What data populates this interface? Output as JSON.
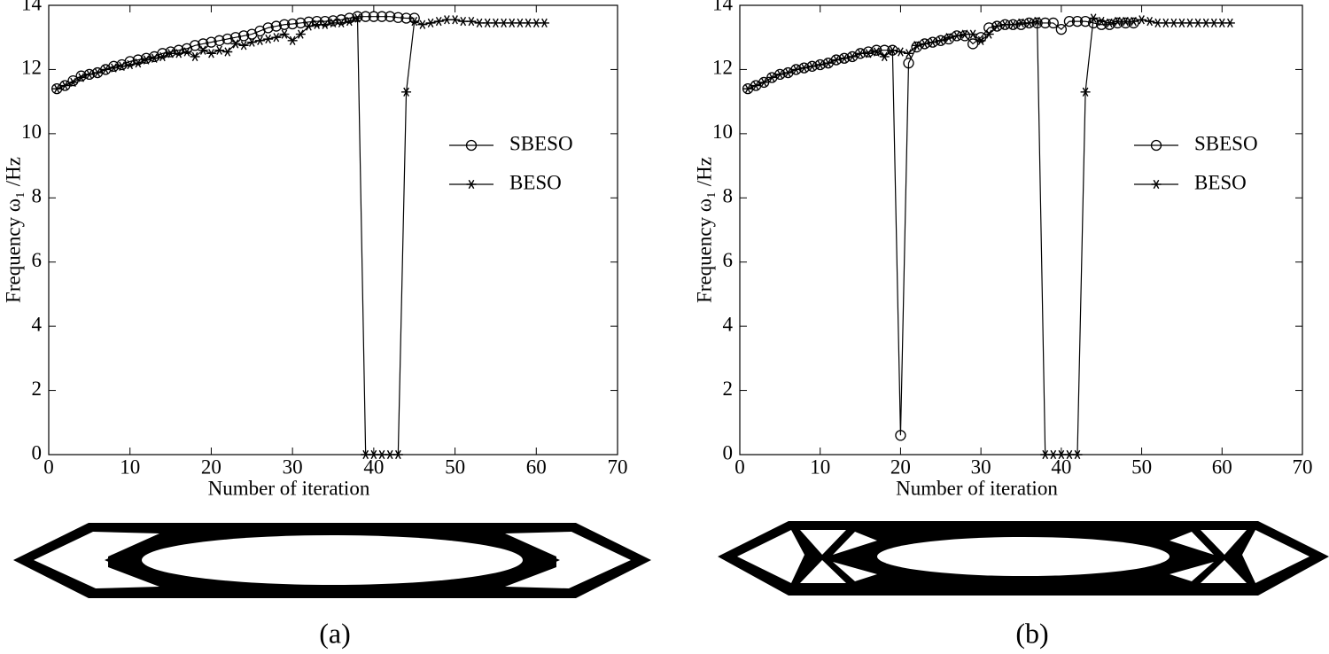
{
  "chart_data": [
    {
      "type": "line",
      "label": "(a)",
      "xlabel": "Number of iteration",
      "ylabel": "Frequency ω₁ /Hz",
      "xlim": [
        0,
        70
      ],
      "ylim": [
        0,
        14
      ],
      "xticks": [
        0,
        10,
        20,
        30,
        40,
        50,
        60,
        70
      ],
      "yticks": [
        0,
        2,
        4,
        6,
        8,
        10,
        12,
        14
      ],
      "legend": "center right",
      "series": [
        {
          "name": "SBESO",
          "color": "#000000",
          "marker": "o",
          "x": [
            1,
            2,
            3,
            4,
            5,
            6,
            7,
            8,
            9,
            10,
            11,
            12,
            13,
            14,
            15,
            16,
            17,
            18,
            19,
            20,
            21,
            22,
            23,
            24,
            25,
            26,
            27,
            28,
            29,
            30,
            31,
            32,
            33,
            34,
            35,
            36,
            37,
            38,
            39,
            40,
            41,
            42,
            43,
            44,
            45
          ],
          "values": [
            11.4,
            11.5,
            11.65,
            11.8,
            11.85,
            11.9,
            12.0,
            12.1,
            12.15,
            12.25,
            12.3,
            12.35,
            12.4,
            12.5,
            12.55,
            12.6,
            12.65,
            12.75,
            12.8,
            12.85,
            12.9,
            12.95,
            13.0,
            13.05,
            13.1,
            13.2,
            13.3,
            13.35,
            13.4,
            13.42,
            13.45,
            13.48,
            13.5,
            13.5,
            13.52,
            13.55,
            13.6,
            13.65,
            13.65,
            13.65,
            13.65,
            13.65,
            13.62,
            13.6,
            13.6
          ]
        },
        {
          "name": "BESO",
          "color": "#000000",
          "marker": "*",
          "x": [
            1,
            2,
            3,
            4,
            5,
            6,
            7,
            8,
            9,
            10,
            11,
            12,
            13,
            14,
            15,
            16,
            17,
            18,
            19,
            20,
            21,
            22,
            23,
            24,
            25,
            26,
            27,
            28,
            29,
            30,
            31,
            32,
            33,
            34,
            35,
            36,
            37,
            38,
            39,
            40,
            41,
            42,
            43,
            44,
            45,
            46,
            47,
            48,
            49,
            50,
            51,
            52,
            53,
            54,
            55,
            56,
            57,
            58,
            59,
            60,
            61
          ],
          "values": [
            11.4,
            11.5,
            11.6,
            11.75,
            11.85,
            11.9,
            12.0,
            12.05,
            12.1,
            12.15,
            12.2,
            12.3,
            12.35,
            12.4,
            12.5,
            12.5,
            12.55,
            12.4,
            12.6,
            12.5,
            12.6,
            12.55,
            12.8,
            12.75,
            12.85,
            12.9,
            12.95,
            13.0,
            13.1,
            12.9,
            13.1,
            13.35,
            13.4,
            13.4,
            13.45,
            13.45,
            13.5,
            13.6,
            0,
            0,
            0,
            0,
            0,
            11.3,
            13.5,
            13.4,
            13.45,
            13.5,
            13.55,
            13.55,
            13.5,
            13.5,
            13.45,
            13.45,
            13.45,
            13.45,
            13.45,
            13.45,
            13.45,
            13.45,
            13.45
          ]
        }
      ]
    },
    {
      "type": "line",
      "label": "(b)",
      "xlabel": "Number of iteration",
      "ylabel": "Frequency ω₁ /Hz",
      "xlim": [
        0,
        70
      ],
      "ylim": [
        0,
        14
      ],
      "xticks": [
        0,
        10,
        20,
        30,
        40,
        50,
        60,
        70
      ],
      "yticks": [
        0,
        2,
        4,
        6,
        8,
        10,
        12,
        14
      ],
      "legend": "center right",
      "series": [
        {
          "name": "SBESO",
          "color": "#000000",
          "marker": "o",
          "x": [
            1,
            2,
            3,
            4,
            5,
            6,
            7,
            8,
            9,
            10,
            11,
            12,
            13,
            14,
            15,
            16,
            17,
            18,
            19,
            20,
            21,
            22,
            23,
            24,
            25,
            26,
            27,
            28,
            29,
            30,
            31,
            32,
            33,
            34,
            35,
            36,
            37,
            38,
            39,
            40,
            41,
            42,
            43,
            44,
            45,
            46,
            47,
            48,
            49
          ],
          "values": [
            11.4,
            11.5,
            11.6,
            11.75,
            11.85,
            11.9,
            12.0,
            12.05,
            12.1,
            12.15,
            12.2,
            12.3,
            12.35,
            12.4,
            12.5,
            12.55,
            12.6,
            12.6,
            12.6,
            0.6,
            12.2,
            12.7,
            12.8,
            12.85,
            12.9,
            12.95,
            13.05,
            13.05,
            12.8,
            13.0,
            13.3,
            13.35,
            13.4,
            13.4,
            13.4,
            13.45,
            13.45,
            13.45,
            13.45,
            13.25,
            13.5,
            13.5,
            13.5,
            13.45,
            13.4,
            13.4,
            13.45,
            13.45,
            13.45
          ]
        },
        {
          "name": "BESO",
          "color": "#000000",
          "marker": "*",
          "x": [
            1,
            2,
            3,
            4,
            5,
            6,
            7,
            8,
            9,
            10,
            11,
            12,
            13,
            14,
            15,
            16,
            17,
            18,
            19,
            20,
            21,
            22,
            23,
            24,
            25,
            26,
            27,
            28,
            29,
            30,
            31,
            32,
            33,
            34,
            35,
            36,
            37,
            38,
            39,
            40,
            41,
            42,
            43,
            44,
            45,
            46,
            47,
            48,
            49,
            50,
            51,
            52,
            53,
            54,
            55,
            56,
            57,
            58,
            59,
            60,
            61
          ],
          "values": [
            11.4,
            11.5,
            11.6,
            11.75,
            11.85,
            11.9,
            12.0,
            12.05,
            12.1,
            12.15,
            12.2,
            12.3,
            12.35,
            12.4,
            12.5,
            12.5,
            12.55,
            12.4,
            12.6,
            12.55,
            12.5,
            12.75,
            12.8,
            12.85,
            12.9,
            13.0,
            13.05,
            13.1,
            13.1,
            12.9,
            13.1,
            13.35,
            13.4,
            13.4,
            13.45,
            13.45,
            13.5,
            0,
            0,
            0,
            0,
            0,
            11.3,
            13.6,
            13.5,
            13.45,
            13.5,
            13.5,
            13.5,
            13.55,
            13.5,
            13.45,
            13.45,
            13.45,
            13.45,
            13.45,
            13.45,
            13.45,
            13.45,
            13.45,
            13.45
          ]
        }
      ]
    }
  ]
}
